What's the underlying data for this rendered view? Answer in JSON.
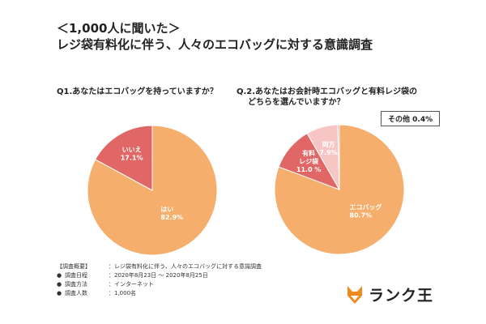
{
  "header": {
    "title_line1": "＜1,000人に聞いた＞",
    "title_line2": "レジ袋有料化に伴う、人々のエコバッグに対する意識調査"
  },
  "chart_data": [
    {
      "type": "pie",
      "title": "Q1.あなたはエコバッグを持っていますか？",
      "slices": [
        {
          "label": "はい",
          "value": 82.9,
          "display": "82.9%",
          "color": "#F5AE6B",
          "text_color": "#ffffff"
        },
        {
          "label": "いいえ",
          "value": 17.1,
          "display": "17.1%",
          "color": "#E06765",
          "text_color": "#ffffff"
        }
      ]
    },
    {
      "type": "pie",
      "title_line1": "Q.2.あなたはお会計時エコバッグと有料レジ袋の",
      "title_line2": "どちらを選んでいますか？",
      "slices": [
        {
          "label": "エコバッグ",
          "value": 80.7,
          "display": "80.7%",
          "color": "#F5AE6B",
          "text_color": "#ffffff"
        },
        {
          "label": "有料\nレジ袋",
          "value": 11.0,
          "display": "11.0 %",
          "color": "#E06765",
          "text_color": "#ffffff"
        },
        {
          "label": "両方",
          "value": 7.9,
          "display": "7.9%",
          "color": "#F7C6C4",
          "text_color": "#ffffff"
        },
        {
          "label": "その他",
          "value": 0.4,
          "display": "0.4%",
          "color": "#A9B3BF",
          "text_color": "#222222"
        }
      ],
      "callout": "その他 0.4%"
    }
  ],
  "survey": {
    "heading": "【調査概要】",
    "heading_value": "：レジ袋有料化に伴う、人々のエコバッグに対する意識調査",
    "rows": [
      {
        "key": "調査日程",
        "value": "：2020年8月23日 〜 2020年8月25日"
      },
      {
        "key": "調査方法",
        "value": "：インターネット"
      },
      {
        "key": "調査人数",
        "value": "：1,000名"
      }
    ]
  },
  "logo": {
    "text": "ランク王",
    "color": "#F08A1E"
  }
}
